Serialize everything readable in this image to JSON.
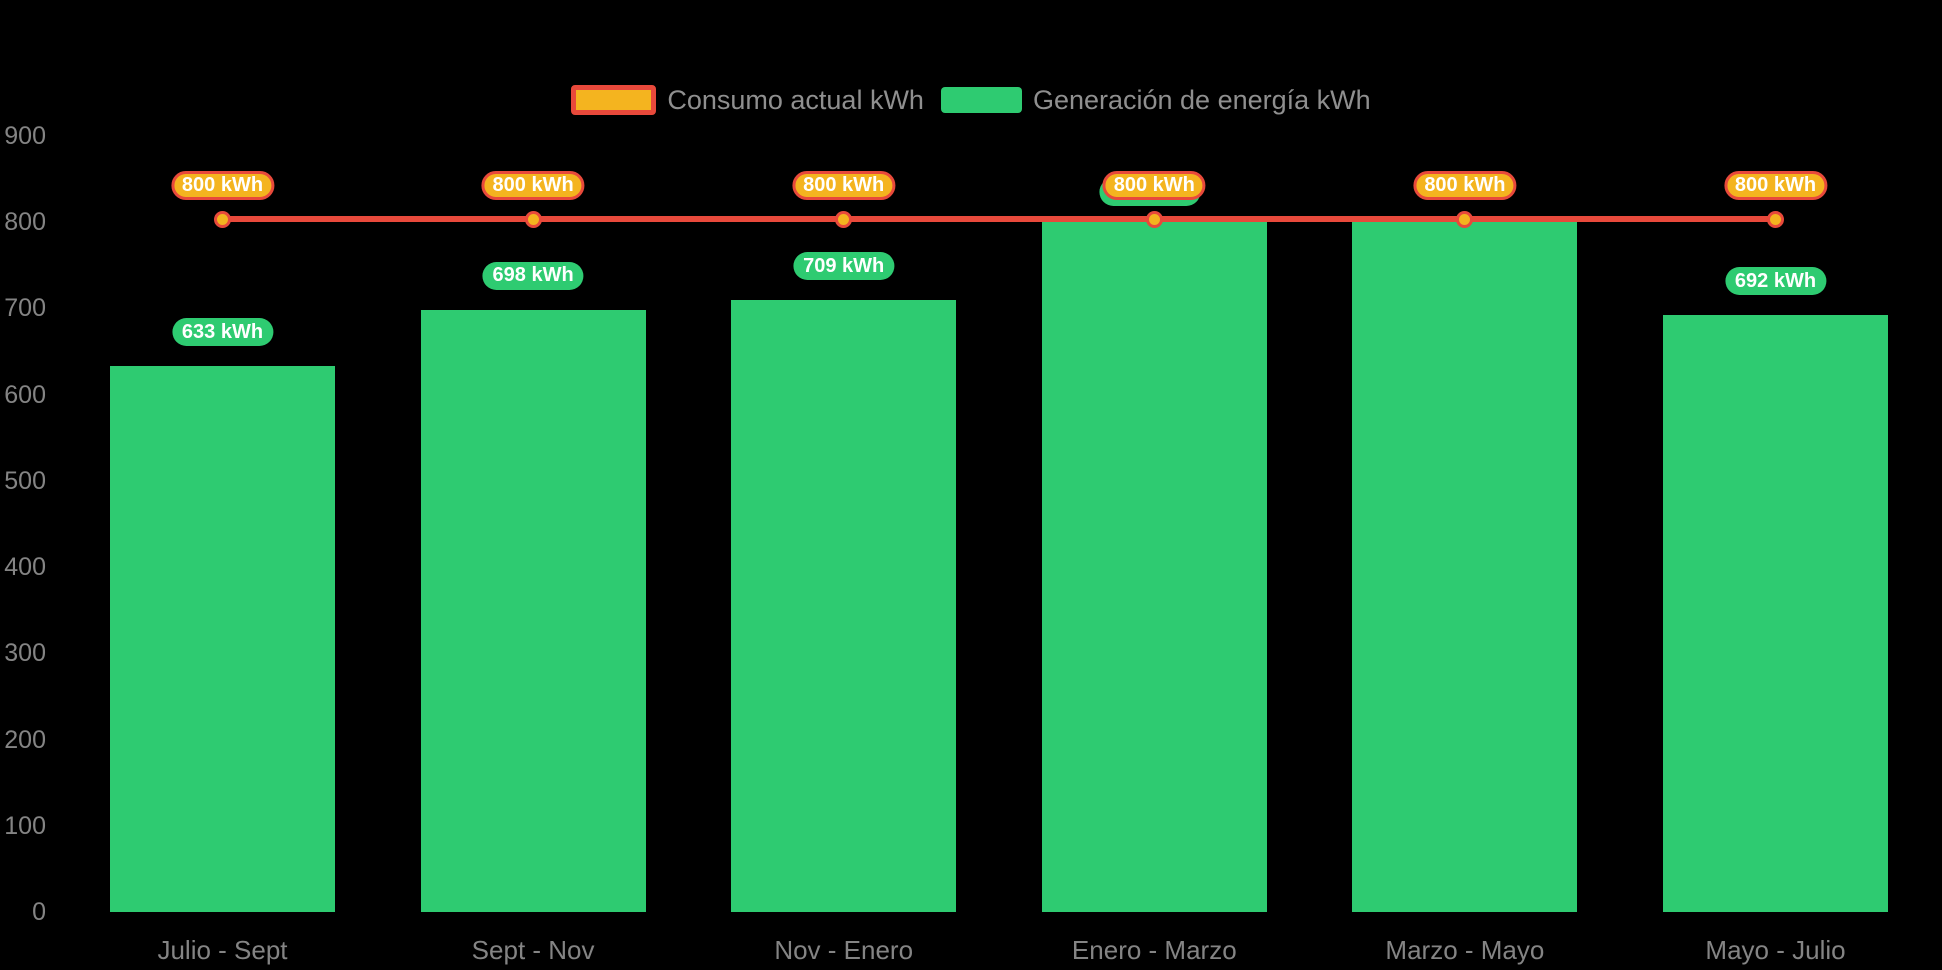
{
  "chart_data": {
    "type": "bar",
    "subtype": "combo-bar-line",
    "title": "",
    "categories": [
      "Julio - Sept",
      "Sept - Nov",
      "Nov - Enero",
      "Enero - Marzo",
      "Marzo - Mayo",
      "Mayo - Julio"
    ],
    "series": [
      {
        "name": "Consumo actual kWh",
        "type": "line",
        "values": [
          800,
          800,
          800,
          800,
          800,
          800
        ],
        "point_labels": [
          "800 kWh",
          "800 kWh",
          "800 kWh",
          "800 kWh",
          "800 kWh",
          "800 kWh"
        ],
        "color": "#e8493b",
        "marker_color": "#f4b41f"
      },
      {
        "name": "Generación de energía kWh",
        "type": "bar",
        "values": [
          633,
          698,
          709,
          800,
          800,
          692
        ],
        "point_labels": [
          "633 kWh",
          "698 kWh",
          "709 kWh",
          "800 kWh",
          "800 kWh",
          "692 kWh"
        ],
        "color": "#2ecb71"
      }
    ],
    "xlabel": "",
    "ylabel": "",
    "ylim": [
      0,
      900
    ],
    "yticks": [
      0,
      100,
      200,
      300,
      400,
      500,
      600,
      700,
      800,
      900
    ],
    "grid": false,
    "legend_position": "top",
    "background": "#000000"
  },
  "colors": {
    "background": "#000000",
    "bar_green": "#2ecb71",
    "line_red": "#e8493b",
    "marker_gold": "#f4b41f",
    "pill_text": "#ffffff",
    "axis_text": "#848484",
    "legend_text": "#8f8f8f"
  }
}
